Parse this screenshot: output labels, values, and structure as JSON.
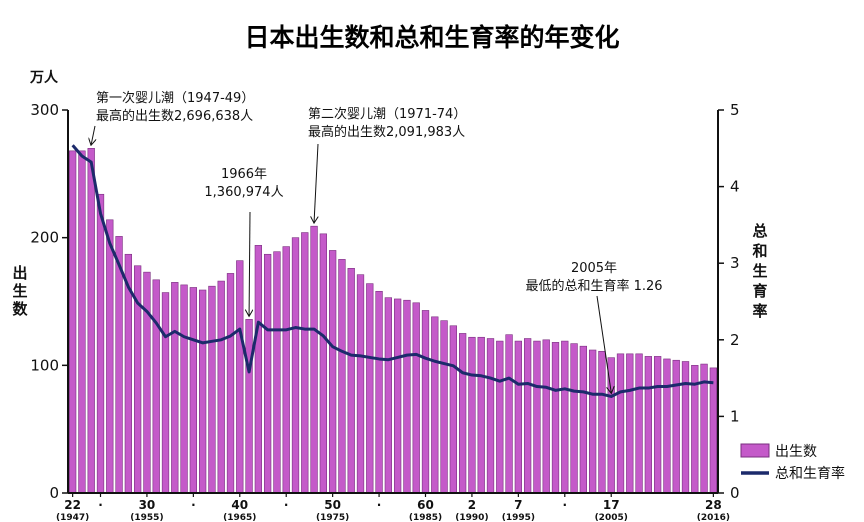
{
  "chart_data": {
    "type": "bar",
    "title": "日本出生数和总和生育率的年变化",
    "y_left_unit": "万人",
    "y_left_label": "出生数",
    "y_right_label": "总和生育率",
    "y_left_ticks": [
      "0",
      "100",
      "200",
      "300"
    ],
    "y_right_ticks": [
      "0",
      "1",
      "2",
      "3",
      "4",
      "5"
    ],
    "ylim_left": [
      0,
      300
    ],
    "ylim_right": [
      0,
      5
    ],
    "x_ticks": [
      {
        "year": 1947,
        "label": "22",
        "sub": "(1947)"
      },
      {
        "year": 1950,
        "label": "·",
        "sub": ""
      },
      {
        "year": 1955,
        "label": "30",
        "sub": "(1955)"
      },
      {
        "year": 1960,
        "label": "·",
        "sub": ""
      },
      {
        "year": 1965,
        "label": "40",
        "sub": "(1965)"
      },
      {
        "year": 1970,
        "label": "·",
        "sub": ""
      },
      {
        "year": 1975,
        "label": "50",
        "sub": "(1975)"
      },
      {
        "year": 1980,
        "label": "·",
        "sub": ""
      },
      {
        "year": 1985,
        "label": "60",
        "sub": "(1985)"
      },
      {
        "year": 1990,
        "label": "2",
        "sub": "(1990)"
      },
      {
        "year": 1995,
        "label": "7",
        "sub": "(1995)"
      },
      {
        "year": 2000,
        "label": "·",
        "sub": ""
      },
      {
        "year": 2005,
        "label": "17",
        "sub": "(2005)"
      },
      {
        "year": 2016,
        "label": "28",
        "sub": "(2016)"
      }
    ],
    "series": [
      {
        "name": "出生数",
        "kind": "bar",
        "axis": "left",
        "color": "#c45ac9",
        "x": [
          1947,
          1948,
          1949,
          1950,
          1951,
          1952,
          1953,
          1954,
          1955,
          1956,
          1957,
          1958,
          1959,
          1960,
          1961,
          1962,
          1963,
          1964,
          1965,
          1966,
          1967,
          1968,
          1969,
          1970,
          1971,
          1972,
          1973,
          1974,
          1975,
          1976,
          1977,
          1978,
          1979,
          1980,
          1981,
          1982,
          1983,
          1984,
          1985,
          1986,
          1987,
          1988,
          1989,
          1990,
          1991,
          1992,
          1993,
          1994,
          1995,
          1996,
          1997,
          1998,
          1999,
          2000,
          2001,
          2002,
          2003,
          2004,
          2005,
          2006,
          2007,
          2008,
          2009,
          2010,
          2011,
          2012,
          2013,
          2014,
          2015,
          2016
        ],
        "values": [
          268,
          268,
          270,
          234,
          214,
          201,
          187,
          178,
          173,
          167,
          157,
          165,
          163,
          161,
          159,
          162,
          166,
          172,
          182,
          136,
          194,
          187,
          189,
          193,
          200,
          204,
          209,
          203,
          190,
          183,
          176,
          171,
          164,
          158,
          153,
          152,
          151,
          149,
          143,
          138,
          135,
          131,
          125,
          122,
          122,
          121,
          119,
          124,
          119,
          121,
          119,
          120,
          118,
          119,
          117,
          115,
          112,
          111,
          106,
          109,
          109,
          109,
          107,
          107,
          105,
          104,
          103,
          100,
          101,
          98
        ]
      },
      {
        "name": "总和生育率",
        "kind": "line",
        "axis": "right",
        "color": "#1c2a6b",
        "x": [
          1947,
          1948,
          1949,
          1950,
          1951,
          1952,
          1953,
          1954,
          1955,
          1956,
          1957,
          1958,
          1959,
          1960,
          1961,
          1962,
          1963,
          1964,
          1965,
          1966,
          1967,
          1968,
          1969,
          1970,
          1971,
          1972,
          1973,
          1974,
          1975,
          1976,
          1977,
          1978,
          1979,
          1980,
          1981,
          1982,
          1983,
          1984,
          1985,
          1986,
          1987,
          1988,
          1989,
          1990,
          1991,
          1992,
          1993,
          1994,
          1995,
          1996,
          1997,
          1998,
          1999,
          2000,
          2001,
          2002,
          2003,
          2004,
          2005,
          2006,
          2007,
          2008,
          2009,
          2010,
          2011,
          2012,
          2013,
          2014,
          2015,
          2016
        ],
        "values": [
          4.54,
          4.4,
          4.32,
          3.65,
          3.26,
          2.98,
          2.69,
          2.48,
          2.37,
          2.22,
          2.04,
          2.11,
          2.04,
          2.0,
          1.96,
          1.98,
          2.0,
          2.05,
          2.14,
          1.58,
          2.23,
          2.13,
          2.13,
          2.13,
          2.16,
          2.14,
          2.14,
          2.05,
          1.91,
          1.85,
          1.8,
          1.79,
          1.77,
          1.75,
          1.74,
          1.77,
          1.8,
          1.81,
          1.76,
          1.72,
          1.69,
          1.66,
          1.57,
          1.54,
          1.53,
          1.5,
          1.46,
          1.5,
          1.42,
          1.43,
          1.39,
          1.38,
          1.34,
          1.36,
          1.33,
          1.32,
          1.29,
          1.29,
          1.26,
          1.32,
          1.34,
          1.37,
          1.37,
          1.39,
          1.39,
          1.41,
          1.43,
          1.42,
          1.45,
          1.44
        ]
      }
    ],
    "annotations": [
      {
        "lines": [
          "第一次婴儿潮（1947-49）",
          "最高的出生数2,696,638人"
        ],
        "year": 1949,
        "axis": "left",
        "value": 270
      },
      {
        "lines": [
          "第二次婴儿潮（1971-74）",
          "最高的出生数2,091,983人"
        ],
        "year": 1973,
        "axis": "left",
        "value": 209
      },
      {
        "lines": [
          "1966年",
          "1,360,974人"
        ],
        "year": 1966,
        "axis": "left",
        "value": 136
      },
      {
        "lines": [
          "2005年",
          "最低的总和生育率 1.26"
        ],
        "year": 2005,
        "axis": "right",
        "value": 1.26
      }
    ],
    "legend": {
      "position": "bottom-right"
    },
    "grid": false
  }
}
